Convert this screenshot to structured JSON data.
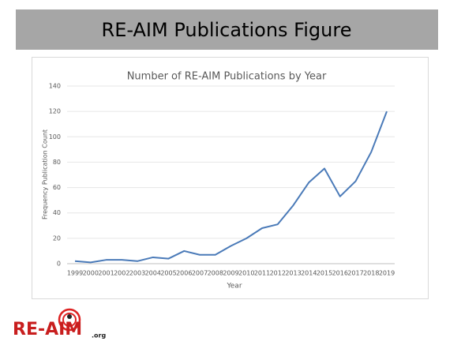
{
  "header": {
    "title": "RE-AIM Publications Figure"
  },
  "chart_data": {
    "type": "line",
    "title": "Number of RE-AIM Publications by Year",
    "x_label": "Year",
    "y_label": "Frequency Publication Count",
    "categories": [
      "1999",
      "2000",
      "2001",
      "2002",
      "2003",
      "2004",
      "2005",
      "2006",
      "2007",
      "2008",
      "2009",
      "2010",
      "2011",
      "2012",
      "2013",
      "2014",
      "2015",
      "2016",
      "2017",
      "2018",
      "2019"
    ],
    "series": [
      {
        "name": "Publications",
        "color": "#4a7ab8",
        "values": [
          2,
          1,
          3,
          3,
          2,
          5,
          4,
          10,
          7,
          7,
          14,
          20,
          28,
          31,
          46,
          64,
          75,
          53,
          65,
          88,
          120
        ]
      }
    ],
    "ylim": [
      0,
      140
    ],
    "yticks": [
      0,
      20,
      40,
      60,
      80,
      100,
      120,
      140
    ],
    "grid": true
  },
  "logo": {
    "text": "RE-AIM",
    "suffix": ".org"
  }
}
